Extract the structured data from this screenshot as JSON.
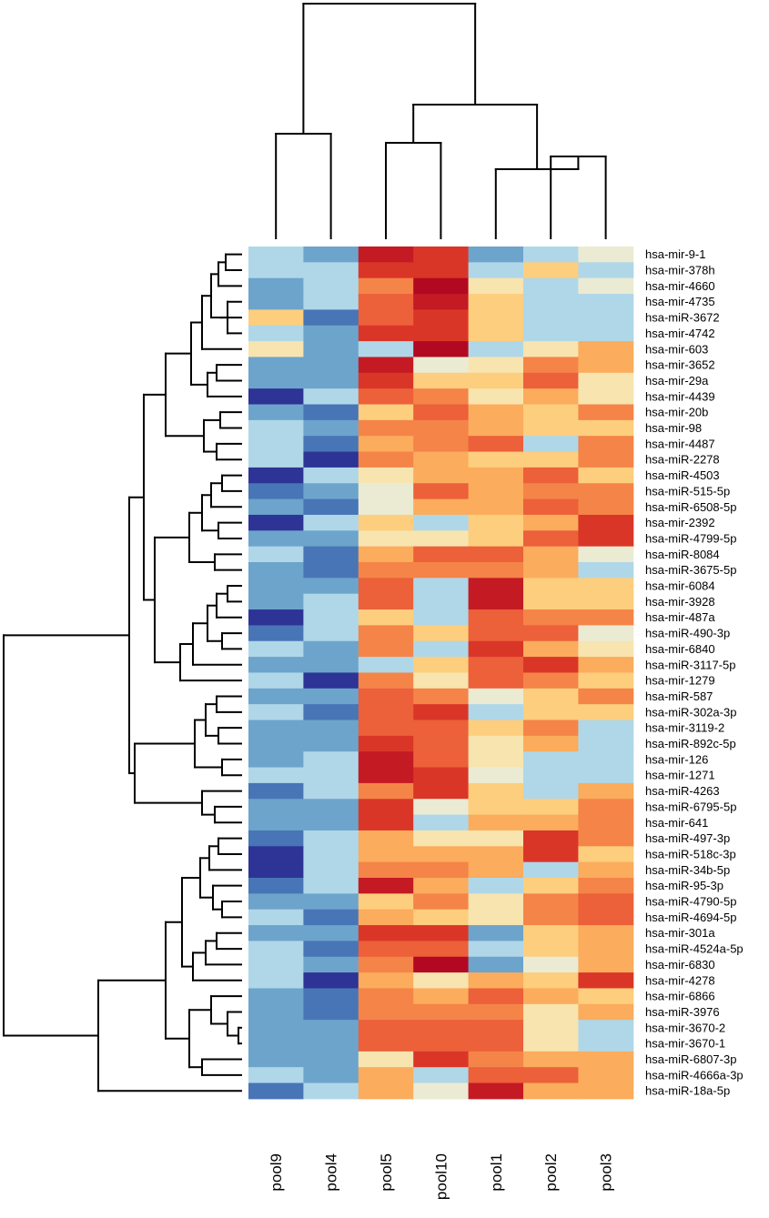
{
  "chart_data": {
    "type": "heatmap",
    "title": "",
    "columns": [
      "pool9",
      "pool4",
      "pool5",
      "pool10",
      "pool1",
      "pool2",
      "pool3"
    ],
    "rows": [
      "hsa-mir-9-1",
      "hsa-mir-378h",
      "hsa-mir-4660",
      "hsa-mir-4735",
      "hsa-miR-3672",
      "hsa-mir-4742",
      "hsa-mir-603",
      "hsa-mir-3652",
      "hsa-mir-29a",
      "hsa-mir-4439",
      "hsa-mir-20b",
      "hsa-mir-98",
      "hsa-mir-4487",
      "hsa-miR-2278",
      "hsa-miR-4503",
      "hsa-miR-515-5p",
      "hsa-miR-6508-5p",
      "hsa-mir-2392",
      "hsa-miR-4799-5p",
      "hsa-miR-8084",
      "hsa-miR-3675-5p",
      "hsa-mir-6084",
      "hsa-mir-3928",
      "hsa-mir-487a",
      "hsa-miR-490-3p",
      "hsa-mir-6840",
      "hsa-miR-3117-5p",
      "hsa-mir-1279",
      "hsa-miR-587",
      "hsa-miR-302a-3p",
      "hsa-mir-3119-2",
      "hsa-miR-892c-5p",
      "hsa-mir-126",
      "hsa-mir-1271",
      "hsa-miR-4263",
      "hsa-miR-6795-5p",
      "hsa-mir-641",
      "hsa-miR-497-3p",
      "hsa-miR-518c-3p",
      "hsa-miR-34b-5p",
      "hsa-miR-95-3p",
      "hsa-miR-4790-5p",
      "hsa-miR-4694-5p",
      "hsa-mir-301a",
      "hsa-miR-4524a-5p",
      "hsa-mir-6830",
      "hsa-mir-4278",
      "hsa-mir-6866",
      "hsa-miR-3976",
      "hsa-mir-3670-2",
      "hsa-mir-3670-1",
      "hsa-miR-6807-3p",
      "hsa-miR-4666a-3p",
      "hsa-miR-18a-5p"
    ],
    "values": [
      [
        -1,
        -2,
        7,
        6,
        -2,
        -1,
        0
      ],
      [
        -1,
        -1,
        6,
        6,
        -1,
        2,
        -1
      ],
      [
        -2,
        -1,
        4,
        8,
        1,
        -1,
        0
      ],
      [
        -2,
        -1,
        5,
        7,
        2,
        -1,
        -1
      ],
      [
        2,
        -3,
        5,
        6,
        2,
        -1,
        -1
      ],
      [
        -1,
        -2,
        6,
        6,
        2,
        -1,
        -1
      ],
      [
        1,
        -2,
        -1,
        8,
        -1,
        1,
        3
      ],
      [
        -2,
        -2,
        7,
        0,
        1,
        4,
        3
      ],
      [
        -2,
        -2,
        6,
        2,
        2,
        5,
        1
      ],
      [
        -4,
        -1,
        5,
        4,
        1,
        3,
        1
      ],
      [
        -2,
        -3,
        2,
        5,
        3,
        2,
        4
      ],
      [
        -1,
        -2,
        4,
        4,
        3,
        2,
        2
      ],
      [
        -1,
        -3,
        3,
        4,
        5,
        -1,
        4
      ],
      [
        -1,
        -4,
        4,
        3,
        2,
        2,
        4
      ],
      [
        -4,
        -1,
        1,
        3,
        3,
        5,
        2
      ],
      [
        -3,
        -2,
        0,
        5,
        3,
        4,
        4
      ],
      [
        -2,
        -3,
        0,
        3,
        3,
        5,
        4
      ],
      [
        -4,
        -1,
        2,
        -1,
        2,
        3,
        6
      ],
      [
        -2,
        -2,
        1,
        1,
        2,
        5,
        6
      ],
      [
        -1,
        -3,
        3,
        5,
        5,
        3,
        0
      ],
      [
        -2,
        -3,
        4,
        4,
        4,
        3,
        -1
      ],
      [
        -2,
        -2,
        5,
        -1,
        7,
        2,
        2
      ],
      [
        -2,
        -1,
        5,
        -1,
        7,
        2,
        2
      ],
      [
        -4,
        -1,
        2,
        -1,
        5,
        4,
        4
      ],
      [
        -3,
        -1,
        4,
        2,
        5,
        5,
        0
      ],
      [
        -1,
        -2,
        4,
        -1,
        6,
        3,
        1
      ],
      [
        -2,
        -2,
        -1,
        2,
        5,
        6,
        3
      ],
      [
        -1,
        -4,
        4,
        1,
        5,
        4,
        2
      ],
      [
        -2,
        -2,
        5,
        4,
        0,
        2,
        4
      ],
      [
        -1,
        -3,
        5,
        6,
        -1,
        2,
        2
      ],
      [
        -2,
        -2,
        5,
        5,
        2,
        4,
        -1
      ],
      [
        -2,
        -2,
        6,
        5,
        1,
        3,
        -1
      ],
      [
        -2,
        -1,
        7,
        5,
        1,
        -1,
        -1
      ],
      [
        -1,
        -1,
        7,
        6,
        0,
        -1,
        -1
      ],
      [
        -3,
        -1,
        4,
        6,
        2,
        -1,
        3
      ],
      [
        -2,
        -2,
        6,
        0,
        2,
        2,
        4
      ],
      [
        -2,
        -2,
        6,
        -1,
        3,
        3,
        4
      ],
      [
        -3,
        -1,
        3,
        1,
        1,
        6,
        4
      ],
      [
        -4,
        -1,
        3,
        3,
        3,
        6,
        2
      ],
      [
        -4,
        -1,
        4,
        4,
        3,
        -1,
        3
      ],
      [
        -3,
        -1,
        7,
        3,
        -1,
        2,
        4
      ],
      [
        -2,
        -2,
        2,
        4,
        1,
        4,
        5
      ],
      [
        -1,
        -3,
        3,
        2,
        1,
        4,
        5
      ],
      [
        -2,
        -2,
        6,
        6,
        -2,
        2,
        3
      ],
      [
        -1,
        -3,
        5,
        5,
        -1,
        2,
        3
      ],
      [
        -1,
        -2,
        4,
        8,
        -2,
        0,
        3
      ],
      [
        -1,
        -4,
        3,
        1,
        3,
        2,
        6
      ],
      [
        -2,
        -3,
        4,
        3,
        5,
        3,
        2
      ],
      [
        -2,
        -3,
        4,
        4,
        4,
        1,
        3
      ],
      [
        -2,
        -2,
        5,
        5,
        5,
        1,
        -1
      ],
      [
        -2,
        -2,
        5,
        5,
        5,
        1,
        -1
      ],
      [
        -2,
        -2,
        1,
        6,
        4,
        3,
        3
      ],
      [
        -1,
        -2,
        3,
        -1,
        5,
        5,
        3
      ],
      [
        -3,
        -1,
        3,
        0,
        7,
        3,
        3
      ]
    ],
    "value_range": [
      -4,
      8
    ],
    "palette_low": "#2d3495",
    "palette_mid": "#f6eccc",
    "palette_high": "#bb0a22",
    "column_dendrogram": true,
    "row_dendrogram": true,
    "legend": "none"
  }
}
